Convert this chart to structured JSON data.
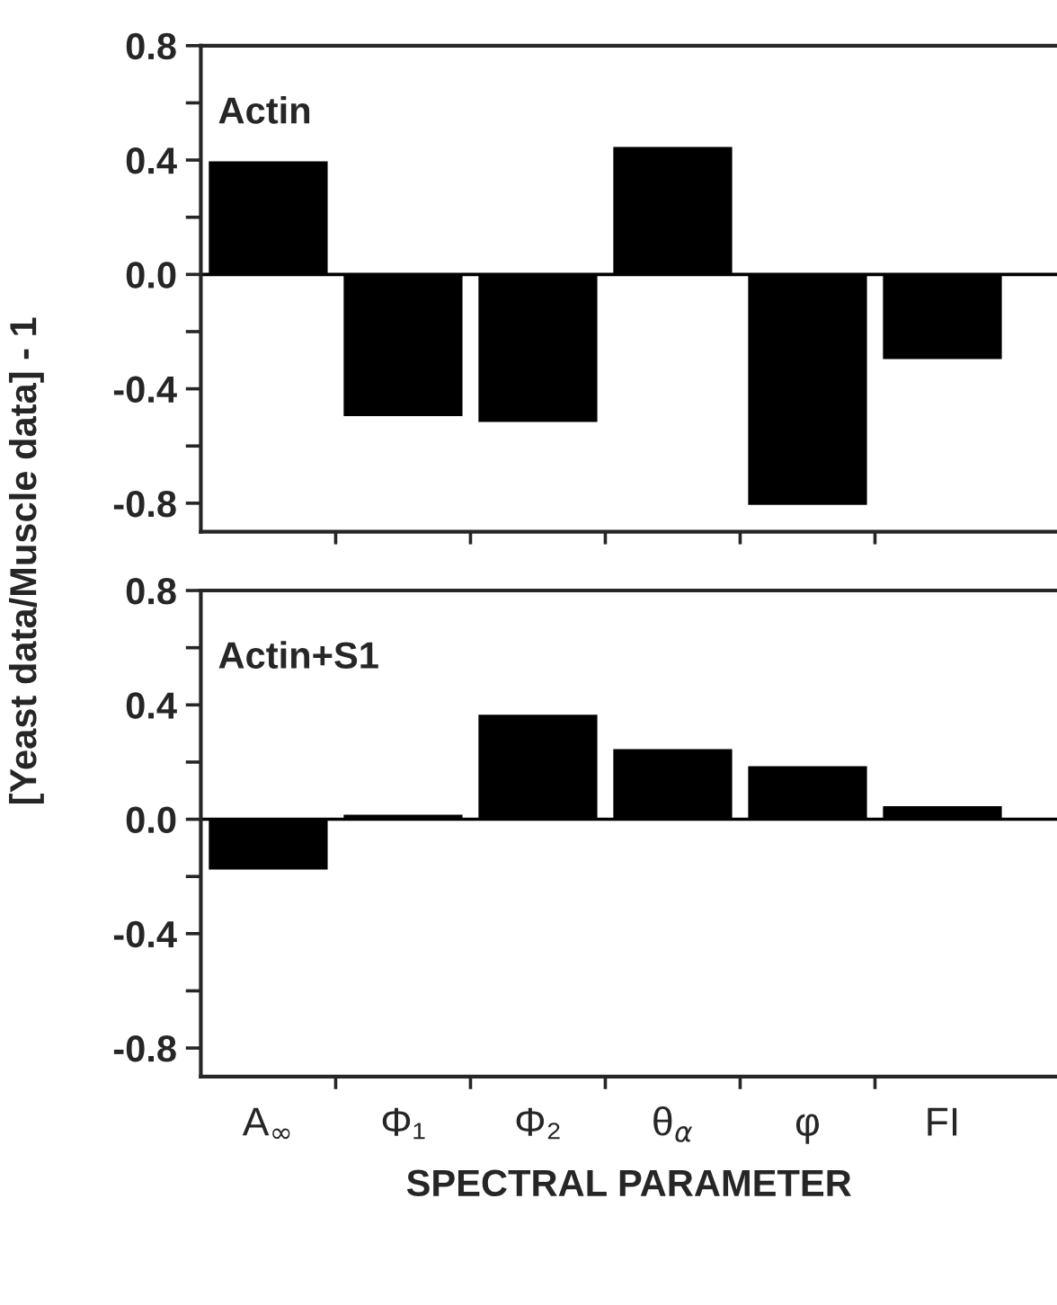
{
  "chart_data": [
    {
      "type": "bar",
      "ylabel": "[Yeast data/Muscle data] - 1",
      "annotations": [
        "Actin"
      ],
      "series": [
        {
          "color": "#000000",
          "values": [
            0.4,
            -0.5,
            -0.52,
            0.45,
            -0.81,
            -0.3
          ]
        }
      ],
      "ylim": [
        -0.9,
        0.8
      ],
      "yticks": [
        {
          "value": -0.8,
          "label": "-0.8"
        },
        {
          "value": -0.6,
          "label": null
        },
        {
          "value": -0.4,
          "label": "-0.4"
        },
        {
          "value": -0.2,
          "label": null
        },
        {
          "value": 0,
          "label": "0.0"
        },
        {
          "value": 0.2,
          "label": null
        },
        {
          "value": 0.4,
          "label": "0.4"
        },
        {
          "value": 0.6,
          "label": null
        },
        {
          "value": 0.8,
          "label": "0.8"
        }
      ],
      "tick_labels": "y"
    },
    {
      "type": "bar",
      "xlabel": "SPECTRAL PARAMETER",
      "annotations": [
        "Actin+S1"
      ],
      "categories": [
        "A$_{∞}$",
        "Φ₁",
        "Φ₂",
        "θ$_{α}$",
        "φ",
        "FI"
      ],
      "series": [
        {
          "color": "#000000",
          "values": [
            -0.18,
            0.02,
            0.37,
            0.25,
            0.19,
            0.05
          ]
        }
      ],
      "ylim": [
        -0.9,
        0.8
      ],
      "yticks": [
        {
          "value": -0.8,
          "label": "-0.8"
        },
        {
          "value": -0.6,
          "label": null
        },
        {
          "value": -0.4,
          "label": "-0.4"
        },
        {
          "value": -0.2,
          "label": null
        },
        {
          "value": 0,
          "label": "0.0"
        },
        {
          "value": 0.2,
          "label": null
        },
        {
          "value": 0.4,
          "label": "0.4"
        },
        {
          "value": 0.6,
          "label": null
        },
        {
          "value": 0.8,
          "label": "0.8"
        }
      ]
    }
  ]
}
